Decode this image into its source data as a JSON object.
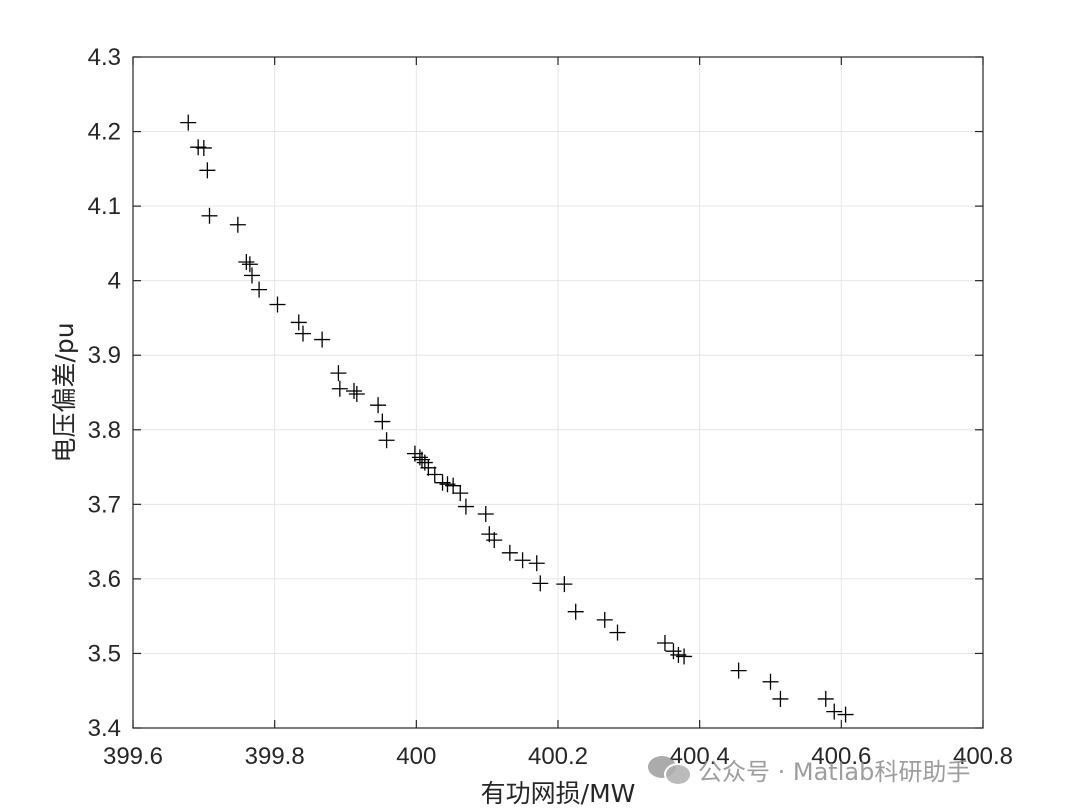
{
  "chart_data": {
    "type": "scatter",
    "title": "",
    "xlabel": "有功网损/MW",
    "ylabel": "电压偏差/pu",
    "xlim": [
      399.6,
      400.8
    ],
    "ylim": [
      3.4,
      4.3
    ],
    "xticks": [
      "399.6",
      "399.8",
      "400",
      "400.2",
      "400.4",
      "400.6",
      "400.8"
    ],
    "yticks": [
      "3.4",
      "3.5",
      "3.6",
      "3.7",
      "3.8",
      "3.9",
      "4",
      "4.1",
      "4.2",
      "4.3"
    ],
    "grid": true,
    "marker": "+",
    "marker_color": "#000000",
    "points": [
      [
        399.678,
        4.212
      ],
      [
        399.692,
        4.179
      ],
      [
        399.7,
        4.178
      ],
      [
        399.705,
        4.148
      ],
      [
        399.708,
        4.087
      ],
      [
        399.748,
        4.075
      ],
      [
        399.76,
        4.025
      ],
      [
        399.765,
        4.022
      ],
      [
        399.768,
        4.007
      ],
      [
        399.778,
        3.988
      ],
      [
        399.804,
        3.968
      ],
      [
        399.834,
        3.944
      ],
      [
        399.84,
        3.929
      ],
      [
        399.867,
        3.921
      ],
      [
        399.89,
        3.876
      ],
      [
        399.892,
        3.855
      ],
      [
        399.912,
        3.852
      ],
      [
        399.916,
        3.848
      ],
      [
        399.946,
        3.833
      ],
      [
        399.952,
        3.811
      ],
      [
        399.958,
        3.786
      ],
      [
        399.998,
        3.768
      ],
      [
        400.005,
        3.763
      ],
      [
        400.008,
        3.76
      ],
      [
        400.012,
        3.756
      ],
      [
        400.017,
        3.749
      ],
      [
        400.026,
        3.74
      ],
      [
        400.037,
        3.729
      ],
      [
        400.044,
        3.727
      ],
      [
        400.052,
        3.725
      ],
      [
        400.062,
        3.715
      ],
      [
        400.07,
        3.697
      ],
      [
        400.098,
        3.687
      ],
      [
        400.103,
        3.66
      ],
      [
        400.11,
        3.652
      ],
      [
        400.132,
        3.635
      ],
      [
        400.15,
        3.625
      ],
      [
        400.17,
        3.621
      ],
      [
        400.175,
        3.594
      ],
      [
        400.209,
        3.593
      ],
      [
        400.225,
        3.556
      ],
      [
        400.266,
        3.545
      ],
      [
        400.284,
        3.528
      ],
      [
        400.351,
        3.514
      ],
      [
        400.363,
        3.503
      ],
      [
        400.37,
        3.498
      ],
      [
        400.378,
        3.496
      ],
      [
        400.455,
        3.477
      ],
      [
        400.5,
        3.462
      ],
      [
        400.514,
        3.439
      ],
      [
        400.578,
        3.439
      ],
      [
        400.59,
        3.422
      ],
      [
        400.606,
        3.418
      ]
    ]
  },
  "watermark": {
    "icon": "wechat-icon",
    "text": "公众号 · Matlab科研助手"
  }
}
